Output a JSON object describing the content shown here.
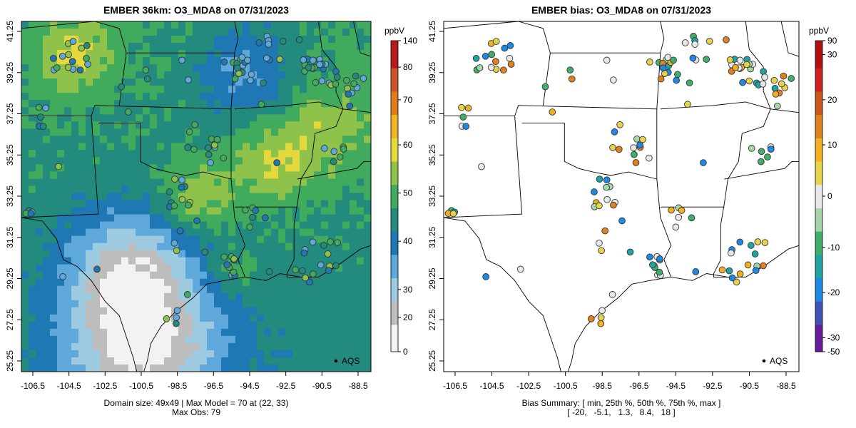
{
  "left_panel": {
    "title": "EMBER 36km: O3_MDA8 on 07/31/2023",
    "caption_line1": "Domain size: 49x49 | Max Model = 70 at (22, 33)",
    "caption_line2": "Max Obs: 79",
    "legend_label": "AQS",
    "colorbar_unit": "ppbV",
    "colorbar_ticks": [
      "140",
      "80",
      "70",
      "60",
      "50",
      "40",
      "30",
      "20",
      "0"
    ],
    "colors": [
      "#f2f2f2",
      "#bdbdbd",
      "#9ecae1",
      "#5ea8dc",
      "#1f78b4",
      "#238b7e",
      "#41ab5d",
      "#8fc24a",
      "#e3d93d",
      "#f0b429",
      "#e07b1f",
      "#c9562b",
      "#b71c1c"
    ]
  },
  "right_panel": {
    "title": "EMBER bias: O3_MDA8 on 07/31/2023",
    "caption_line1": "Bias Summary: [ min, 25th %, 50th %, 75th %, max ]",
    "caption_line2": "[ -20,   -5.1,   1.3,   8.4,   18 ]",
    "legend_label": "AQS",
    "colorbar_unit": "ppbV",
    "colorbar_ticks": [
      "90",
      "30",
      "20",
      "10",
      "0",
      "-10",
      "-20",
      "-30",
      "-50"
    ],
    "colors": [
      "#6a1b9a",
      "#3f51b5",
      "#1e88e5",
      "#1fa3a3",
      "#3fae6a",
      "#a5d6a7",
      "#e8e8e8",
      "#e6d34a",
      "#f0b020",
      "#e0801f",
      "#c9561b",
      "#d02020",
      "#b01010"
    ]
  },
  "axes": {
    "x_ticks": [
      "-106.5",
      "-104.5",
      "-102.5",
      "-100.5",
      "-98.5",
      "-96.5",
      "-94.5",
      "-92.5",
      "-90.5",
      "-88.5"
    ],
    "y_ticks": [
      "41.25",
      "39.25",
      "37.25",
      "35.25",
      "33.25",
      "31.25",
      "29.25",
      "27.25",
      "25.25"
    ]
  }
}
